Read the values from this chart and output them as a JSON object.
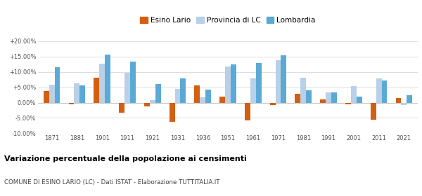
{
  "years": [
    1871,
    1881,
    1901,
    1911,
    1921,
    1931,
    1936,
    1951,
    1961,
    1971,
    1981,
    1991,
    2001,
    2011,
    2021
  ],
  "esino_lario": [
    3.8,
    -0.5,
    8.1,
    -3.2,
    -1.2,
    -6.2,
    5.7,
    2.0,
    -5.9,
    -0.8,
    2.9,
    1.1,
    -0.5,
    -5.5,
    1.5
  ],
  "provincia_lc": [
    5.8,
    6.2,
    12.6,
    9.8,
    0.7,
    4.4,
    1.8,
    11.8,
    7.9,
    13.7,
    8.0,
    3.3,
    5.3,
    7.9,
    -0.9
  ],
  "lombardia": [
    11.5,
    5.7,
    15.7,
    13.3,
    6.1,
    7.9,
    4.3,
    12.4,
    12.8,
    15.3,
    4.0,
    3.3,
    2.0,
    7.2,
    2.5
  ],
  "color_esino": "#d45f10",
  "color_provincia": "#b8d0e8",
  "color_lombardia": "#5baad5",
  "title": "Variazione percentuale della popolazione ai censimenti",
  "subtitle": "COMUNE DI ESINO LARIO (LC) - Dati ISTAT - Elaborazione TUTTITALIA.IT",
  "ylim": [
    -10,
    20
  ],
  "yticks": [
    -10,
    -5,
    0,
    5,
    10,
    15,
    20
  ]
}
